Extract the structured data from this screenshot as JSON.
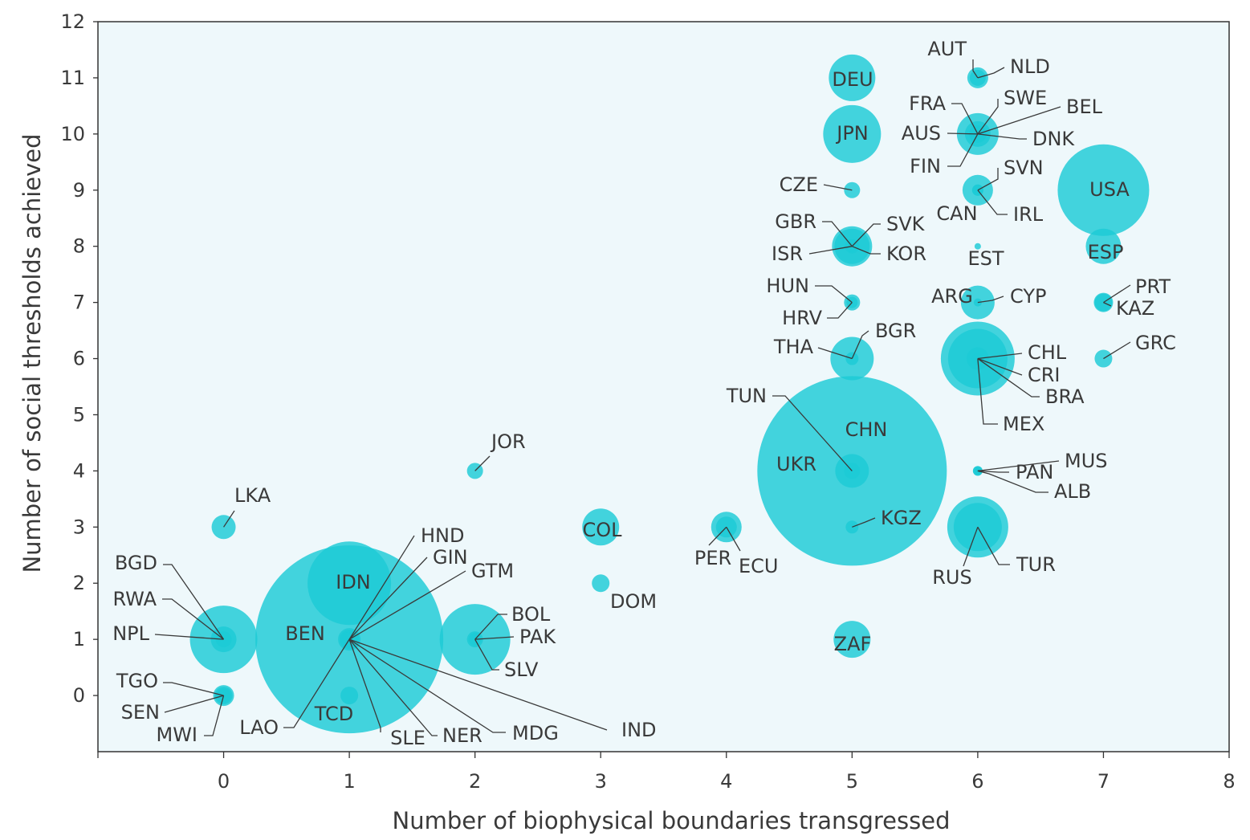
{
  "chart_data": {
    "type": "scatter",
    "title": "",
    "xlabel": "Number of biophysical boundaries transgressed",
    "ylabel": "Number of social thresholds achieved",
    "xlim": [
      -1,
      8
    ],
    "ylim": [
      -1,
      12
    ],
    "x_ticks": [
      0,
      1,
      2,
      3,
      4,
      5,
      6,
      7,
      8
    ],
    "y_ticks": [
      0,
      1,
      2,
      3,
      4,
      5,
      6,
      7,
      8,
      9,
      10,
      11,
      12
    ],
    "grid": false,
    "bubble_color": "#1ccbd6",
    "plot_background": "#eef8fb",
    "plot_border": "#333333",
    "points": [
      {
        "label": "USA",
        "x": 7,
        "y": 9,
        "size": 57
      },
      {
        "label": "ESP",
        "x": 7,
        "y": 8,
        "size": 22
      },
      {
        "label": "PRT",
        "x": 7,
        "y": 7,
        "size": 11
      },
      {
        "label": "KAZ",
        "x": 7,
        "y": 7,
        "size": 12
      },
      {
        "label": "GRC",
        "x": 7,
        "y": 6,
        "size": 11
      },
      {
        "label": "DEU",
        "x": 5,
        "y": 11,
        "size": 29
      },
      {
        "label": "JPN",
        "x": 5,
        "y": 10,
        "size": 36
      },
      {
        "label": "CZE",
        "x": 5,
        "y": 9,
        "size": 10
      },
      {
        "label": "GBR",
        "x": 5,
        "y": 8,
        "size": 25
      },
      {
        "label": "SVK",
        "x": 5,
        "y": 8,
        "size": 7
      },
      {
        "label": "ISR",
        "x": 5,
        "y": 8,
        "size": 9
      },
      {
        "label": "KOR",
        "x": 5,
        "y": 8,
        "size": 22
      },
      {
        "label": "HUN",
        "x": 5,
        "y": 7,
        "size": 10
      },
      {
        "label": "HRV",
        "x": 5,
        "y": 7,
        "size": 7
      },
      {
        "label": "THA",
        "x": 5,
        "y": 6,
        "size": 27
      },
      {
        "label": "BGR",
        "x": 5,
        "y": 6,
        "size": 8
      },
      {
        "label": "TUN",
        "x": 5,
        "y": 4,
        "size": 10
      },
      {
        "label": "CHN",
        "x": 5,
        "y": 4,
        "size": 118
      },
      {
        "label": "UKR",
        "x": 5,
        "y": 4,
        "size": 21
      },
      {
        "label": "KGZ",
        "x": 5,
        "y": 3,
        "size": 8
      },
      {
        "label": "ZAF",
        "x": 5,
        "y": 1,
        "size": 23
      },
      {
        "label": "AUT",
        "x": 6,
        "y": 11,
        "size": 10
      },
      {
        "label": "NLD",
        "x": 6,
        "y": 11,
        "size": 13
      },
      {
        "label": "FRA",
        "x": 6,
        "y": 10,
        "size": 26
      },
      {
        "label": "SWE",
        "x": 6,
        "y": 10,
        "size": 10
      },
      {
        "label": "BEL",
        "x": 6,
        "y": 10,
        "size": 11
      },
      {
        "label": "AUS",
        "x": 6,
        "y": 10,
        "size": 16
      },
      {
        "label": "DNK",
        "x": 6,
        "y": 10,
        "size": 8
      },
      {
        "label": "FIN",
        "x": 6,
        "y": 10,
        "size": 8
      },
      {
        "label": "SVN",
        "x": 6,
        "y": 9,
        "size": 7
      },
      {
        "label": "CAN",
        "x": 6,
        "y": 9,
        "size": 19
      },
      {
        "label": "IRL",
        "x": 6,
        "y": 9,
        "size": 7
      },
      {
        "label": "EST",
        "x": 6,
        "y": 8,
        "size": 4
      },
      {
        "label": "ARG",
        "x": 6,
        "y": 7,
        "size": 21
      },
      {
        "label": "CYP",
        "x": 6,
        "y": 7,
        "size": 5
      },
      {
        "label": "CHL",
        "x": 6,
        "y": 6,
        "size": 14
      },
      {
        "label": "CRI",
        "x": 6,
        "y": 6,
        "size": 7
      },
      {
        "label": "BRA",
        "x": 6,
        "y": 6,
        "size": 46
      },
      {
        "label": "MEX",
        "x": 6,
        "y": 6,
        "size": 37
      },
      {
        "label": "MUS",
        "x": 6,
        "y": 4,
        "size": 4
      },
      {
        "label": "PAN",
        "x": 6,
        "y": 4,
        "size": 6
      },
      {
        "label": "ALB",
        "x": 6,
        "y": 4,
        "size": 6
      },
      {
        "label": "RUS",
        "x": 6,
        "y": 3,
        "size": 38
      },
      {
        "label": "TUR",
        "x": 6,
        "y": 3,
        "size": 30
      },
      {
        "label": "JOR",
        "x": 2,
        "y": 4,
        "size": 10
      },
      {
        "label": "LKA",
        "x": 0,
        "y": 3,
        "size": 15
      },
      {
        "label": "COL",
        "x": 3,
        "y": 3,
        "size": 23
      },
      {
        "label": "PER",
        "x": 4,
        "y": 3,
        "size": 19
      },
      {
        "label": "ECU",
        "x": 4,
        "y": 3,
        "size": 13
      },
      {
        "label": "DOM",
        "x": 3,
        "y": 2,
        "size": 11
      },
      {
        "label": "IDN",
        "x": 1,
        "y": 2,
        "size": 52
      },
      {
        "label": "HND",
        "x": 1,
        "y": 1,
        "size": 9
      },
      {
        "label": "GIN",
        "x": 1,
        "y": 1,
        "size": 9
      },
      {
        "label": "GTM",
        "x": 1,
        "y": 1,
        "size": 11
      },
      {
        "label": "BEN",
        "x": 1,
        "y": 1,
        "size": 9
      },
      {
        "label": "IND",
        "x": 1,
        "y": 1,
        "size": 117
      },
      {
        "label": "LAO",
        "x": 1,
        "y": 1,
        "size": 8
      },
      {
        "label": "SLE",
        "x": 1,
        "y": 1,
        "size": 7
      },
      {
        "label": "NER",
        "x": 1,
        "y": 1,
        "size": 12
      },
      {
        "label": "MDG",
        "x": 1,
        "y": 1,
        "size": 14
      },
      {
        "label": "TCD",
        "x": 1,
        "y": 0,
        "size": 11
      },
      {
        "label": "BGD",
        "x": 0,
        "y": 1,
        "size": 42
      },
      {
        "label": "RWA",
        "x": 0,
        "y": 1,
        "size": 10
      },
      {
        "label": "NPL",
        "x": 0,
        "y": 1,
        "size": 16
      },
      {
        "label": "BOL",
        "x": 2,
        "y": 1,
        "size": 10
      },
      {
        "label": "PAK",
        "x": 2,
        "y": 1,
        "size": 44
      },
      {
        "label": "SLV",
        "x": 2,
        "y": 1,
        "size": 8
      },
      {
        "label": "TGO",
        "x": 0,
        "y": 0,
        "size": 9
      },
      {
        "label": "SEN",
        "x": 0,
        "y": 0,
        "size": 11
      },
      {
        "label": "MWI",
        "x": 0,
        "y": 0,
        "size": 13
      }
    ]
  }
}
